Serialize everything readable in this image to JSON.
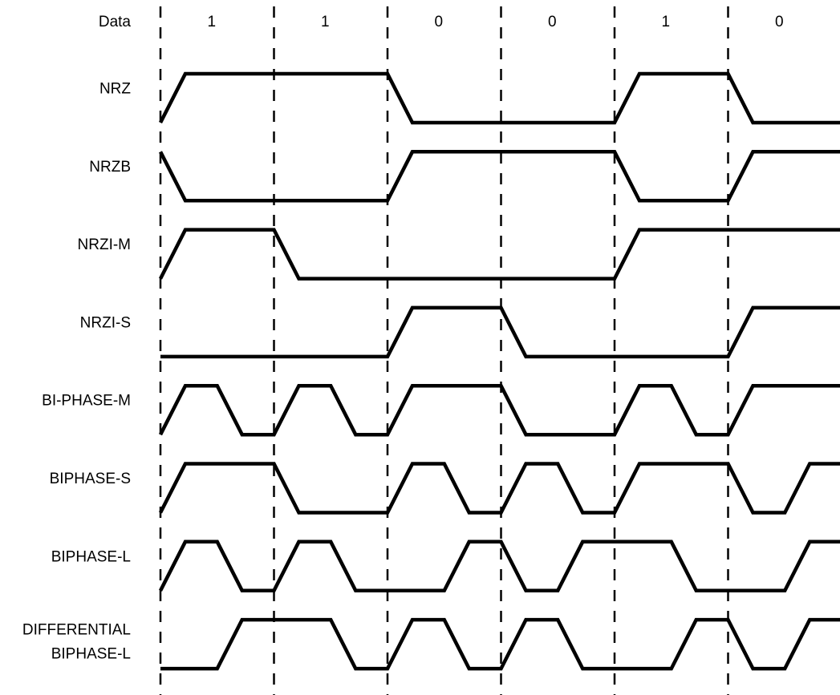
{
  "data_row": {
    "label": "Data",
    "bits": [
      "1",
      "1",
      "0",
      "0",
      "1",
      "0"
    ]
  },
  "signals": [
    {
      "id": "nrz",
      "label": [
        "NRZ"
      ],
      "levels": [
        0,
        1,
        1,
        1,
        1,
        0,
        0,
        0,
        0,
        1,
        1,
        0,
        0
      ]
    },
    {
      "id": "nrzb",
      "label": [
        "NRZB"
      ],
      "levels": [
        1,
        0,
        0,
        0,
        0,
        1,
        1,
        1,
        1,
        0,
        0,
        1,
        1
      ]
    },
    {
      "id": "nrzi-m",
      "label": [
        "NRZI-M"
      ],
      "levels": [
        0,
        1,
        1,
        0,
        0,
        0,
        0,
        0,
        0,
        1,
        1,
        1,
        1
      ]
    },
    {
      "id": "nrzi-s",
      "label": [
        "NRZI-S"
      ],
      "levels": [
        0,
        0,
        0,
        0,
        0,
        1,
        1,
        0,
        0,
        0,
        0,
        1,
        1
      ]
    },
    {
      "id": "bi-phase-m",
      "label": [
        "BI-PHASE-M"
      ],
      "levels": [
        0,
        1,
        0,
        1,
        0,
        1,
        1,
        0,
        0,
        1,
        0,
        1,
        1
      ]
    },
    {
      "id": "biphase-s",
      "label": [
        "BIPHASE-S"
      ],
      "levels": [
        0,
        1,
        1,
        0,
        0,
        1,
        0,
        1,
        0,
        1,
        1,
        0,
        1
      ]
    },
    {
      "id": "biphase-l",
      "label": [
        "BIPHASE-L"
      ],
      "levels": [
        0,
        1,
        0,
        1,
        0,
        0,
        1,
        0,
        1,
        1,
        0,
        0,
        1
      ]
    },
    {
      "id": "diff-biphase-l",
      "label": [
        "DIFFERENTIAL",
        "BIPHASE-L"
      ],
      "levels": [
        0,
        0,
        1,
        1,
        0,
        1,
        0,
        1,
        0,
        0,
        1,
        0,
        1
      ]
    }
  ]
}
